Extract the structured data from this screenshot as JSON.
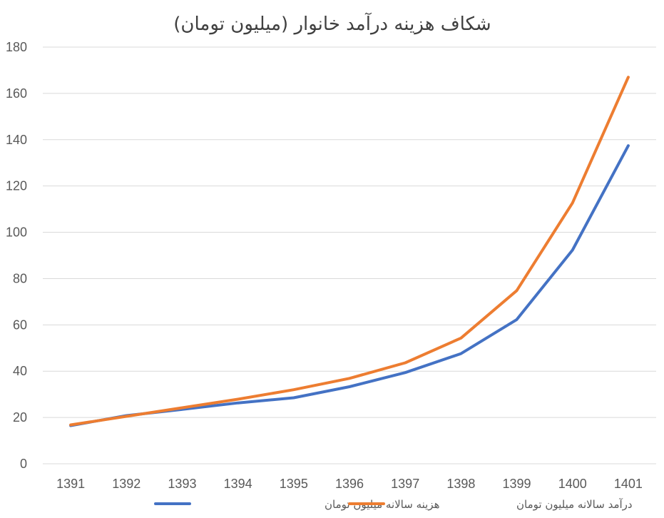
{
  "chart_data": {
    "type": "line",
    "title": "شکاف هزینه درآمد خانوار (میلیون تومان)",
    "categories": [
      "1391",
      "1392",
      "1393",
      "1394",
      "1395",
      "1396",
      "1397",
      "1398",
      "1399",
      "1400",
      "1401"
    ],
    "series": [
      {
        "name": "هزینه سالانه میلیون تومان",
        "color": "#4472C4",
        "values": [
          16.5,
          20.8,
          23.5,
          26.3,
          28.5,
          33.3,
          39.4,
          47.6,
          62.3,
          92.3,
          137.4
        ]
      },
      {
        "name": "درآمد سالانه میلیون تومان",
        "color": "#ED7D31",
        "values": [
          16.8,
          20.5,
          24.2,
          27.9,
          32,
          36.9,
          43.6,
          54.3,
          74.8,
          112.7,
          167
        ]
      }
    ],
    "ylim": [
      0,
      180
    ],
    "yticks": [
      "0",
      "20",
      "40",
      "60",
      "80",
      "100",
      "120",
      "140",
      "160",
      "180"
    ],
    "grid": true,
    "legend": "bottom"
  }
}
